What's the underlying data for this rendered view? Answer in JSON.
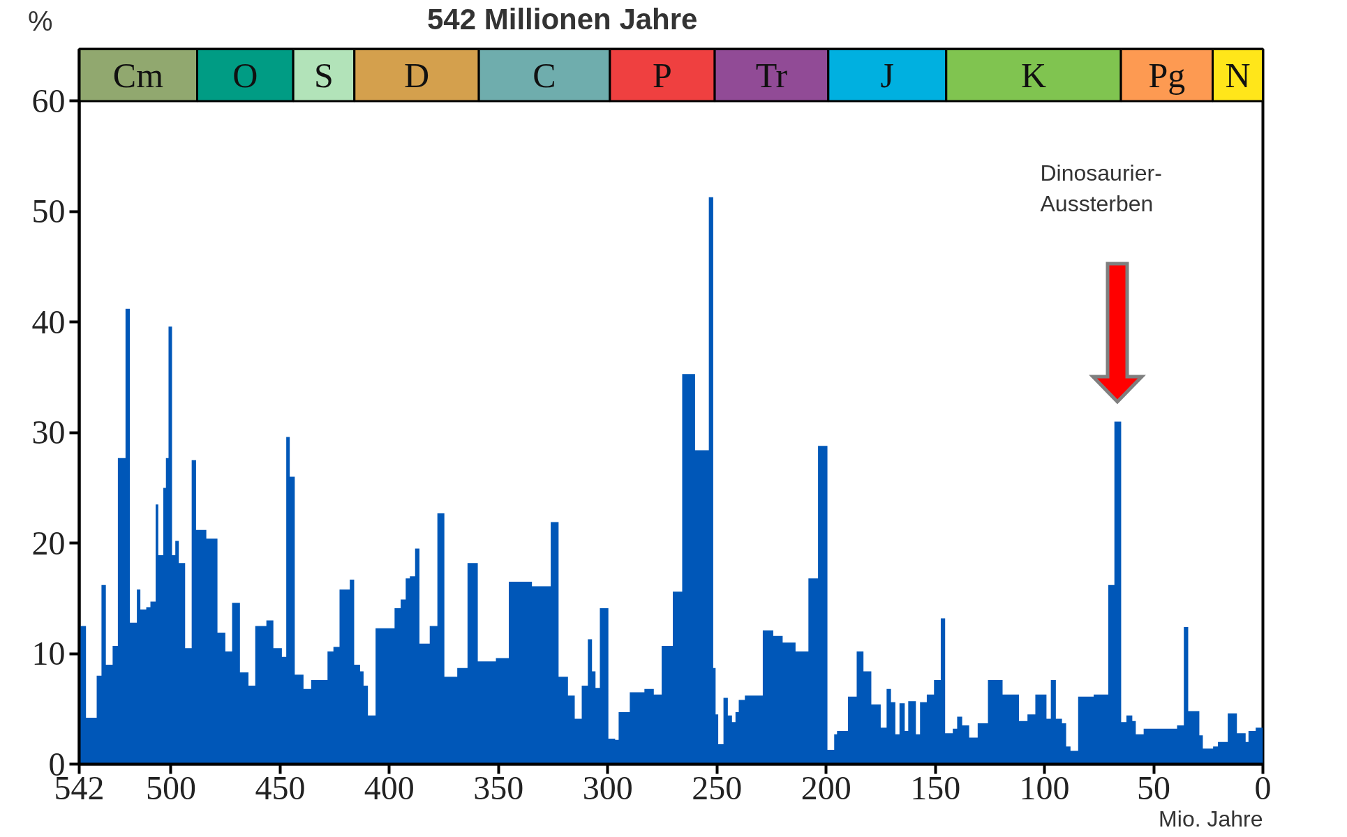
{
  "chart_data": {
    "type": "area",
    "title": "542 Millionen Jahre",
    "xlabel": "Mio. Jahre",
    "ylabel": "%",
    "color": "#0057b8",
    "x": [
      542,
      538.9,
      534,
      531.8,
      529.8,
      526.7,
      524.3,
      520.8,
      518.8,
      515.6,
      514,
      511.3,
      509.4,
      507,
      505.8,
      503.5,
      502.3,
      501.1,
      499.5,
      498,
      496.4,
      493.5,
      490.5,
      488.5,
      483.8,
      478.7,
      475.1,
      472,
      468.4,
      464.5,
      461.4,
      456.3,
      453.1,
      449.2,
      447.2,
      445.6,
      443.3,
      439.3,
      435.8,
      428.3,
      425.6,
      422.8,
      418.1,
      416.1,
      413.4,
      411.8,
      409.8,
      406.3,
      397.6,
      394.8,
      392.5,
      390.6,
      388.2,
      386.2,
      381.5,
      378,
      374.8,
      368.9,
      364.2,
      359.5,
      351.2,
      345.3,
      334.7,
      326.1,
      322.5,
      318.2,
      315.1,
      311.9,
      309.1,
      307.2,
      305.6,
      303.6,
      299.7,
      296.6,
      295,
      289.9,
      283.2,
      278.9,
      275.3,
      270.2,
      265.9,
      260,
      253.7,
      251.7,
      250.6,
      249.4,
      247,
      245,
      243.1,
      241.5,
      240,
      237.2,
      229,
      224.2,
      219.9,
      214,
      208.1,
      203.7,
      199.4,
      196.3,
      195,
      190,
      186,
      182.9,
      179.3,
      175,
      172.3,
      170.3,
      168.3,
      166.4,
      164,
      162.4,
      158.9,
      157,
      153.9,
      150.6,
      147.5,
      145.5,
      142,
      140,
      137.7,
      134.5,
      130.6,
      125.9,
      119.2,
      111.7,
      107.8,
      104.2,
      99.1,
      97.1,
      94.8,
      92,
      90.1,
      88.1,
      84.6,
      77.5,
      70.8,
      68,
      64.9,
      62.5,
      59.8,
      58.2,
      54.6,
      39.3,
      36.2,
      34.2,
      29.1,
      27.5,
      22.8,
      20.6,
      16.1,
      11.9,
      7.9,
      6.6,
      3.3,
      0
    ],
    "values": [
      12.5,
      4.2,
      8,
      16.2,
      9,
      10.7,
      27.7,
      41.2,
      12.8,
      15.8,
      14,
      14.2,
      14.7,
      23.5,
      18.9,
      25,
      27.7,
      39.6,
      18.9,
      20.2,
      18.2,
      10.5,
      27.5,
      21.2,
      20.4,
      11.9,
      10.2,
      14.6,
      8.3,
      7.1,
      12.5,
      13,
      10.5,
      9.7,
      29.6,
      26,
      8.1,
      6.8,
      7.6,
      10.2,
      10.6,
      15.8,
      16.7,
      9,
      8.4,
      7.1,
      4.4,
      12.3,
      14.1,
      14.9,
      16.8,
      17,
      19.5,
      10.9,
      12.5,
      22.7,
      7.9,
      8.7,
      18.2,
      9.3,
      9.6,
      16.5,
      16.1,
      21.9,
      7.9,
      6.2,
      4.1,
      7.1,
      11.3,
      8.4,
      6.9,
      14.1,
      2.3,
      2.2,
      4.7,
      6.5,
      6.8,
      6.3,
      10.7,
      15.6,
      35.3,
      28.4,
      51.3,
      8.7,
      4.5,
      1.8,
      6,
      4.4,
      3.8,
      4.7,
      5.8,
      6.2,
      12.1,
      11.6,
      11,
      10.2,
      16.8,
      28.8,
      1.3,
      2.7,
      3,
      6.1,
      10.2,
      8.4,
      5.4,
      3.3,
      6.8,
      5.6,
      2.7,
      5.5,
      3,
      5.7,
      2.7,
      5.6,
      6.3,
      7.6,
      13.2,
      2.8,
      3.2,
      4.3,
      3.5,
      2.4,
      3.7,
      7.6,
      6.3,
      3.9,
      4.5,
      6.3,
      4.1,
      7.6,
      4.1,
      3.7,
      1.6,
      1.2,
      6.1,
      6.3,
      16.2,
      31,
      3.8,
      4.4,
      3.9,
      2.7,
      3.2,
      3.5,
      12.4,
      4.8,
      2.6,
      1.4,
      1.6,
      2,
      4.6,
      2.8,
      2,
      3,
      3.3,
      3.3
    ],
    "xlim": [
      542,
      0
    ],
    "ylim": [
      0,
      64.7
    ],
    "xticks": [
      542,
      500,
      450,
      400,
      350,
      300,
      250,
      200,
      150,
      100,
      50,
      0
    ],
    "yticks": [
      0,
      10,
      20,
      30,
      40,
      50,
      60
    ],
    "grid": false,
    "bands": [
      {
        "axis": "x",
        "from": 542,
        "to": 488,
        "label": "Cm",
        "color": "#91a86f"
      },
      {
        "axis": "x",
        "from": 488,
        "to": 444,
        "label": "O",
        "color": "#009c84"
      },
      {
        "axis": "x",
        "from": 444,
        "to": 416,
        "label": "S",
        "color": "#b2e3b9"
      },
      {
        "axis": "x",
        "from": 416,
        "to": 359,
        "label": "D",
        "color": "#d4a04d"
      },
      {
        "axis": "x",
        "from": 359,
        "to": 299,
        "label": "C",
        "color": "#6fadad"
      },
      {
        "axis": "x",
        "from": 299,
        "to": 251,
        "label": "P",
        "color": "#ef4040"
      },
      {
        "axis": "x",
        "from": 251,
        "to": 199,
        "label": "Tr",
        "color": "#914b96"
      },
      {
        "axis": "x",
        "from": 199,
        "to": 145,
        "label": "J",
        "color": "#00b0e0"
      },
      {
        "axis": "x",
        "from": 145,
        "to": 65,
        "label": "K",
        "color": "#80c450"
      },
      {
        "axis": "x",
        "from": 65,
        "to": 23,
        "label": "Pg",
        "color": "#fd9a52"
      },
      {
        "axis": "x",
        "from": 23,
        "to": 0,
        "label": "N",
        "color": "#ffe61a"
      }
    ],
    "annotations": [
      "Dinosaurier-\nAussterben"
    ]
  }
}
